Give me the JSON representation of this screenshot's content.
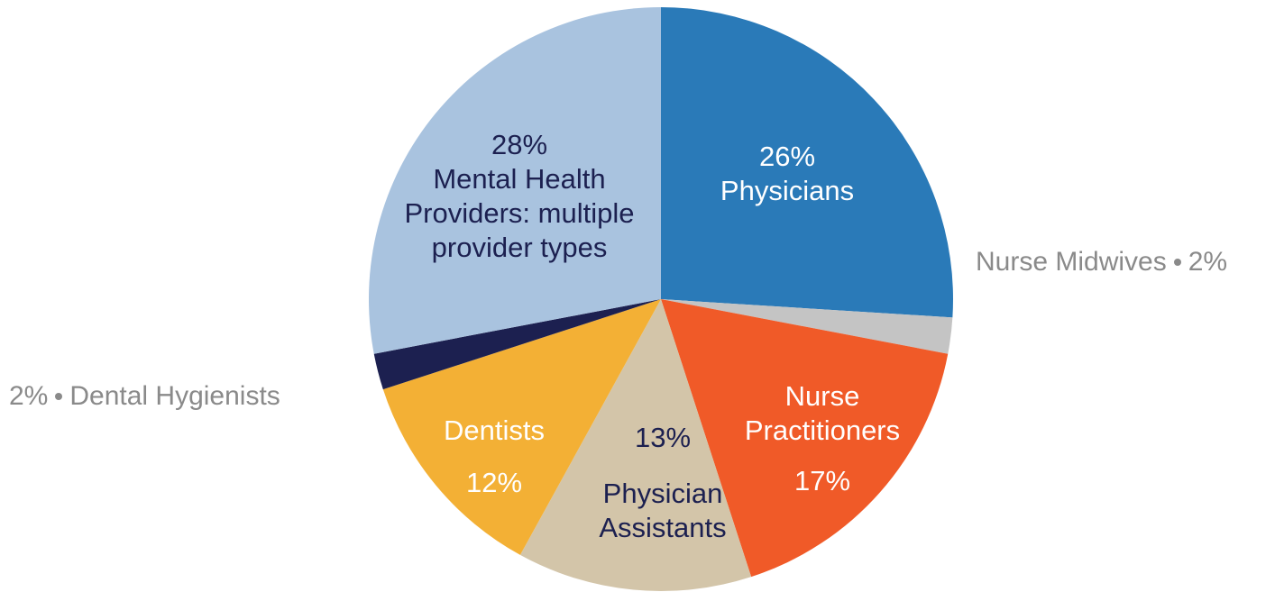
{
  "chart_data": {
    "type": "pie",
    "categories": [
      "Physicians",
      "Nurse Midwives",
      "Nurse Practitioners",
      "Physician Assistants",
      "Dentists",
      "Dental Hygienists",
      "Mental Health Providers: multiple provider types"
    ],
    "values": [
      26,
      2,
      17,
      13,
      12,
      2,
      28
    ],
    "value_labels": [
      "26%",
      "2%",
      "17%",
      "13%",
      "12%",
      "2%",
      "28%"
    ],
    "colors": [
      "#2a7ab8",
      "#c4c4c4",
      "#f05a28",
      "#d3c5a9",
      "#f3b035",
      "#1c2050",
      "#a9c3df"
    ]
  }
}
